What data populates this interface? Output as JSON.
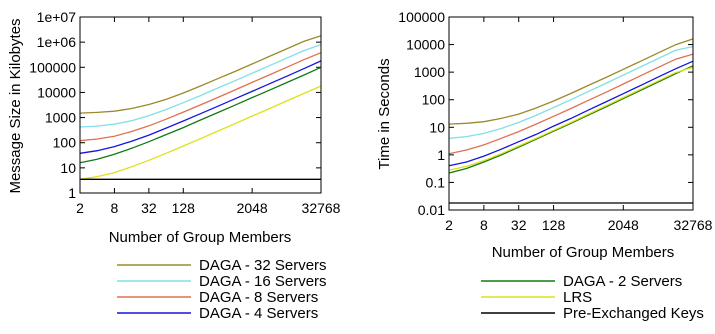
{
  "chart_data": [
    {
      "type": "line",
      "ylabel": "Message Size in Kilobytes",
      "xlabel": "Number of Group Members",
      "x_scale": "log2",
      "y_scale": "log10",
      "xlim": [
        2,
        32768
      ],
      "ylim": [
        1,
        10000000
      ],
      "x_ticks": [
        2,
        8,
        32,
        128,
        2048,
        32768
      ],
      "x_tick_labels": [
        "2",
        "8",
        "32",
        "128",
        "2048",
        "32768"
      ],
      "y_ticks": [
        1,
        10,
        100,
        1000,
        10000,
        100000,
        1000000,
        10000000
      ],
      "y_tick_labels": [
        "1",
        "10",
        "100",
        "1000",
        "10000",
        "100000",
        "1e+06",
        "1e+07"
      ],
      "grid": false,
      "x": [
        2,
        4,
        8,
        16,
        32,
        64,
        128,
        256,
        512,
        1024,
        2048,
        4096,
        8192,
        16384,
        32768
      ],
      "series": [
        {
          "name": "DAGA - 32 Servers",
          "color": "#9b8a2a",
          "values": [
            1500,
            1600,
            1800,
            2300,
            3300,
            5300,
            9500,
            18000,
            35000,
            68000,
            135000,
            270000,
            540000,
            1070000,
            1800000
          ]
        },
        {
          "name": "DAGA - 16 Servers",
          "color": "#7fe0e8",
          "values": [
            420,
            460,
            550,
            750,
            1200,
            2100,
            3900,
            7500,
            15000,
            29000,
            58000,
            116000,
            230000,
            460000,
            800000
          ]
        },
        {
          "name": "DAGA - 8 Servers",
          "color": "#e07050",
          "values": [
            120,
            140,
            180,
            280,
            470,
            860,
            1650,
            3200,
            6300,
            12500,
            25000,
            50000,
            100000,
            200000,
            380000
          ]
        },
        {
          "name": "DAGA - 4 Servers",
          "color": "#1515e0",
          "values": [
            38,
            48,
            70,
            115,
            200,
            380,
            730,
            1430,
            2800,
            5600,
            11000,
            22000,
            44000,
            88000,
            180000
          ]
        },
        {
          "name": "DAGA - 2 Servers",
          "color": "#127a12",
          "values": [
            16,
            22,
            35,
            60,
            110,
            210,
            400,
            800,
            1580,
            3100,
            6200,
            12300,
            24500,
            49000,
            100000
          ]
        },
        {
          "name": "LRS",
          "color": "#e0e01a",
          "values": [
            3.5,
            4.5,
            6.5,
            11,
            20,
            38,
            74,
            145,
            290,
            570,
            1140,
            2280,
            4550,
            9100,
            18000
          ]
        },
        {
          "name": "Pre-Exchanged Keys",
          "color": "#000000",
          "values": [
            3.5,
            3.5,
            3.5,
            3.5,
            3.5,
            3.5,
            3.5,
            3.5,
            3.5,
            3.5,
            3.5,
            3.5,
            3.5,
            3.5,
            3.5
          ]
        }
      ],
      "legend": [
        "DAGA - 32 Servers",
        "DAGA - 16 Servers",
        "DAGA - 8 Servers",
        "DAGA - 4 Servers"
      ],
      "legend_position": "bottom"
    },
    {
      "type": "line",
      "ylabel": "Time in Seconds",
      "xlabel": "Number of Group Members",
      "x_scale": "log2",
      "y_scale": "log10",
      "xlim": [
        2,
        32768
      ],
      "ylim": [
        0.01,
        100000
      ],
      "x_ticks": [
        2,
        8,
        32,
        128,
        2048,
        32768
      ],
      "x_tick_labels": [
        "2",
        "8",
        "32",
        "128",
        "2048",
        "32768"
      ],
      "y_ticks": [
        0.01,
        0.1,
        1,
        10,
        100,
        1000,
        10000,
        100000
      ],
      "y_tick_labels": [
        "0.01",
        "0.1",
        "1",
        "10",
        "100",
        "1000",
        "10000",
        "100000"
      ],
      "grid": false,
      "x": [
        2,
        4,
        8,
        16,
        32,
        64,
        128,
        256,
        512,
        1024,
        2048,
        4096,
        8192,
        16384,
        32768
      ],
      "series": [
        {
          "name": "DAGA - 32 Servers",
          "color": "#9b8a2a",
          "values": [
            13,
            14,
            16,
            21,
            30,
            50,
            90,
            170,
            330,
            640,
            1270,
            2500,
            5000,
            9900,
            16000
          ]
        },
        {
          "name": "DAGA - 16 Servers",
          "color": "#7fe0e8",
          "values": [
            4,
            4.6,
            6,
            9,
            15,
            27,
            52,
            100,
            200,
            390,
            780,
            1550,
            3100,
            6200,
            8500
          ]
        },
        {
          "name": "DAGA - 8 Servers",
          "color": "#e07050",
          "values": [
            1.1,
            1.5,
            2.3,
            4,
            7,
            13,
            25,
            48,
            95,
            185,
            370,
            740,
            1480,
            2950,
            4500
          ]
        },
        {
          "name": "DAGA - 4 Servers",
          "color": "#1515e0",
          "values": [
            0.4,
            0.55,
            0.9,
            1.6,
            3,
            5.5,
            11,
            21,
            42,
            83,
            165,
            330,
            660,
            1320,
            2500
          ]
        },
        {
          "name": "DAGA - 2 Servers",
          "color": "#127a12",
          "values": [
            0.22,
            0.32,
            0.55,
            1,
            1.9,
            3.7,
            7.2,
            14,
            28,
            55,
            110,
            220,
            440,
            880,
            1700
          ]
        },
        {
          "name": "LRS",
          "color": "#e0e01a",
          "values": [
            0.28,
            0.38,
            0.62,
            1.1,
            2.1,
            4,
            7.8,
            15,
            30,
            60,
            120,
            240,
            480,
            960,
            1500
          ]
        },
        {
          "name": "Pre-Exchanged Keys",
          "color": "#000000",
          "values": [
            0.018,
            0.018,
            0.018,
            0.018,
            0.018,
            0.018,
            0.018,
            0.018,
            0.018,
            0.018,
            0.018,
            0.018,
            0.018,
            0.018,
            0.018
          ]
        }
      ],
      "legend": [
        "DAGA - 2 Servers",
        "LRS",
        "Pre-Exchanged Keys"
      ],
      "legend_position": "bottom"
    }
  ]
}
